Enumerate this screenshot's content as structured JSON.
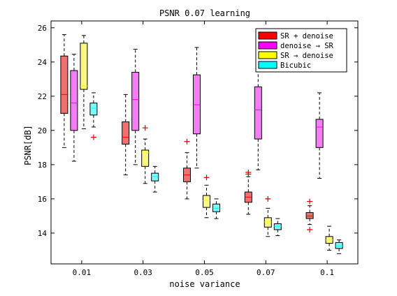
{
  "chart_data": {
    "type": "boxplot",
    "title": "PSNR 0.07 learning",
    "xlabel": "noise variance",
    "ylabel": "PSNR[dB]",
    "ylim": [
      12.2,
      26.4
    ],
    "yticks": [
      14,
      16,
      18,
      20,
      22,
      24,
      26
    ],
    "categories": [
      "0.01",
      "0.03",
      "0.05",
      "0.07",
      "0.1"
    ],
    "legend_position": "top-right",
    "series": [
      {
        "name": "SR + denoise",
        "legend_color": "#ff0000",
        "box_color": "#f07070",
        "boxes": [
          {
            "lw": 19.0,
            "q1": 21.0,
            "med": 22.1,
            "q3": 24.35,
            "uw": 25.6,
            "outliers": []
          },
          {
            "lw": 17.4,
            "q1": 19.2,
            "med": 19.6,
            "q3": 20.5,
            "uw": 22.1,
            "outliers": []
          },
          {
            "lw": 16.0,
            "q1": 17.0,
            "med": 17.4,
            "q3": 17.8,
            "uw": 18.7,
            "outliers": [
              19.35
            ]
          },
          {
            "lw": 15.1,
            "q1": 15.8,
            "med": 16.1,
            "q3": 16.4,
            "uw": 17.3,
            "outliers": [
              17.45,
              17.55
            ]
          },
          {
            "lw": 14.5,
            "q1": 14.85,
            "med": 15.0,
            "q3": 15.2,
            "uw": 15.6,
            "outliers": [
              15.85,
              14.2
            ]
          }
        ]
      },
      {
        "name": "denoise → SR",
        "legend_color": "#ff00ff",
        "box_color": "#f47cf4",
        "boxes": [
          {
            "lw": 18.2,
            "q1": 20.0,
            "med": 21.6,
            "q3": 23.5,
            "uw": 24.45,
            "outliers": []
          },
          {
            "lw": 18.0,
            "q1": 20.0,
            "med": 21.8,
            "q3": 23.4,
            "uw": 24.75,
            "outliers": []
          },
          {
            "lw": 17.8,
            "q1": 19.8,
            "med": 21.5,
            "q3": 23.25,
            "uw": 24.85,
            "outliers": []
          },
          {
            "lw": 17.7,
            "q1": 19.5,
            "med": 21.2,
            "q3": 22.55,
            "uw": 24.0,
            "outliers": []
          },
          {
            "lw": 17.2,
            "q1": 19.0,
            "med": 20.2,
            "q3": 20.65,
            "uw": 22.2,
            "outliers": []
          }
        ]
      },
      {
        "name": "SR → denoise",
        "legend_color": "#ffff00",
        "box_color": "#f8f880",
        "boxes": [
          {
            "lw": 20.1,
            "q1": 22.4,
            "med": 22.6,
            "q3": 25.1,
            "uw": 25.55,
            "outliers": []
          },
          {
            "lw": 16.9,
            "q1": 17.9,
            "med": 18.7,
            "q3": 18.85,
            "uw": 19.5,
            "outliers": [
              20.15
            ]
          },
          {
            "lw": 14.9,
            "q1": 15.5,
            "med": 15.9,
            "q3": 16.2,
            "uw": 16.8,
            "outliers": [
              17.25
            ]
          },
          {
            "lw": 13.8,
            "q1": 14.35,
            "med": 14.65,
            "q3": 14.9,
            "uw": 15.45,
            "outliers": [
              16.0
            ]
          },
          {
            "lw": 13.0,
            "q1": 13.4,
            "med": 13.6,
            "q3": 13.8,
            "uw": 14.4,
            "outliers": []
          }
        ]
      },
      {
        "name": "Bicubic",
        "legend_color": "#00ffff",
        "box_color": "#80f8f8",
        "boxes": [
          {
            "lw": 20.2,
            "q1": 20.9,
            "med": 21.3,
            "q3": 21.6,
            "uw": 22.2,
            "outliers": [
              19.6
            ]
          },
          {
            "lw": 16.4,
            "q1": 17.05,
            "med": 17.3,
            "q3": 17.5,
            "uw": 17.9,
            "outliers": []
          },
          {
            "lw": 14.85,
            "q1": 15.25,
            "med": 15.45,
            "q3": 15.7,
            "uw": 16.0,
            "outliers": []
          },
          {
            "lw": 13.85,
            "q1": 14.2,
            "med": 14.4,
            "q3": 14.55,
            "uw": 14.85,
            "outliers": []
          },
          {
            "lw": 12.8,
            "q1": 13.1,
            "med": 13.25,
            "q3": 13.45,
            "uw": 13.6,
            "outliers": []
          }
        ]
      }
    ]
  }
}
